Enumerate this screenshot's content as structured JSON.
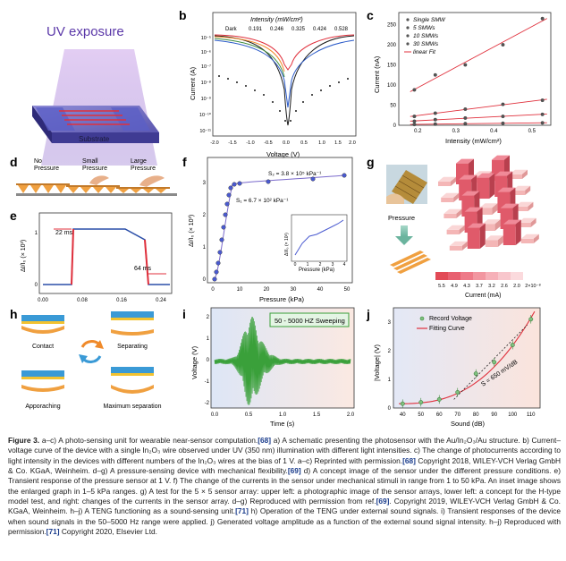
{
  "panels": {
    "a": {
      "letter": "a",
      "title": "UV exposure",
      "substrate": "Substrate"
    },
    "b": {
      "letter": "b",
      "legend_title": "Intensity (mW/cm²)",
      "legend_items": [
        "Dark",
        "0.191",
        "0.246",
        "0.325",
        "0.424",
        "0.528"
      ],
      "ylabel": "Current (A)",
      "xlabel": "Voltage (V)",
      "xticks": [
        "-2.0",
        "-1.5",
        "-1.0",
        "-0.5",
        "0.0",
        "0.5",
        "1.0",
        "1.5",
        "2.0"
      ],
      "yticks": [
        "10⁻⁵",
        "10⁻⁶",
        "10⁻⁷",
        "10⁻⁸",
        "10⁻⁹",
        "10⁻¹⁰",
        "10⁻¹¹"
      ]
    },
    "c": {
      "letter": "c",
      "ylabel": "Current (nA)",
      "xlabel": "Intensity (mW/cm²)",
      "xticks": [
        "0.2",
        "0.3",
        "0.4",
        "0.5"
      ],
      "yticks": [
        "0",
        "50",
        "100",
        "150",
        "200",
        "250"
      ],
      "legend": [
        "Single SMW",
        "5 SMWs",
        "10 SMWs",
        "30 SMWs",
        "linear Fit"
      ]
    },
    "d": {
      "letter": "d",
      "labels": [
        "No\nPressure",
        "Small\nPressure",
        "Large\nPressure"
      ]
    },
    "e": {
      "letter": "e",
      "ylabel": "ΔI/I₀ (× 10³)",
      "xticks": [
        "0.00",
        "0.08",
        "0.16",
        "0.24"
      ],
      "yticks": [
        "0",
        "1"
      ],
      "ann1": "22 ms",
      "ann2": "64 ms"
    },
    "f": {
      "letter": "f",
      "ylabel": "ΔI/I₀ (× 10³)",
      "xlabel": "Pressure (kPa)",
      "xticks": [
        "0",
        "10",
        "20",
        "30",
        "40",
        "50"
      ],
      "yticks": [
        "0",
        "1",
        "2",
        "3"
      ],
      "s1": "S₁ = 6.7 × 10² kPa⁻¹",
      "s2": "S₂ = 3.8 × 10⁵ kPa⁻¹",
      "inset_xlabel": "Pressure (kPa)",
      "inset_ylabel": "ΔI/I₀ (× 10³)",
      "inset_xticks": [
        "0",
        "1",
        "2",
        "3",
        "4"
      ]
    },
    "g": {
      "letter": "g",
      "pressure": "Pressure",
      "scale": [
        "5.5",
        "4.9",
        "4.3",
        "3.7",
        "3.2",
        "2.6",
        "2.0",
        "2×10⁻⁸"
      ],
      "scale_label": "Current (mA)"
    },
    "h": {
      "letter": "h",
      "labels": [
        "Contact",
        "Separating",
        "Apporaching",
        "Maximum separation"
      ]
    },
    "i": {
      "letter": "i",
      "box": "50 - 5000 HZ Sweeping",
      "ylabel": "Voltage (V)",
      "xlabel": "Time (s)",
      "xticks": [
        "0.0",
        "0.5",
        "1.0",
        "1.5",
        "2.0"
      ],
      "yticks": [
        "-2",
        "-1",
        "0",
        "1",
        "2"
      ]
    },
    "j": {
      "letter": "j",
      "ylabel": "|Voltage| (V)",
      "xlabel": "Sound (dB)",
      "xticks": [
        "40",
        "50",
        "60",
        "70",
        "80",
        "90",
        "100",
        "110"
      ],
      "yticks": [
        "0",
        "1",
        "2",
        "3"
      ],
      "legend": [
        "Record Voltage",
        "Fitting Curve"
      ],
      "slope": "S = 650 mV/dB"
    }
  },
  "chart_data": [
    {
      "type": "line",
      "panel": "c",
      "x": [
        0.191,
        0.246,
        0.325,
        0.424,
        0.528
      ],
      "series": [
        {
          "name": "Single SMW",
          "values": [
            2,
            3,
            4,
            5,
            6
          ]
        },
        {
          "name": "5 SMWs",
          "values": [
            10,
            14,
            18,
            22,
            27
          ]
        },
        {
          "name": "10 SMWs",
          "values": [
            22,
            30,
            40,
            52,
            62
          ]
        },
        {
          "name": "30 SMWs",
          "values": [
            88,
            125,
            150,
            200,
            265
          ]
        }
      ],
      "xlabel": "Intensity (mW/cm²)",
      "ylabel": "Current (nA)",
      "xlim": [
        0.15,
        0.55
      ],
      "ylim": [
        0,
        280
      ]
    },
    {
      "type": "scatter",
      "panel": "j",
      "x": [
        40,
        50,
        60,
        70,
        80,
        90,
        100,
        110
      ],
      "series": [
        {
          "name": "Record Voltage",
          "values": [
            0.15,
            0.2,
            0.3,
            0.55,
            1.2,
            1.6,
            2.2,
            3.1
          ]
        }
      ],
      "xlabel": "Sound (dB)",
      "ylabel": "|Voltage| (V)",
      "xlim": [
        35,
        115
      ],
      "ylim": [
        0,
        3.5
      ]
    }
  ],
  "caption": {
    "label": "Figure 3.",
    "text": "a–c) A photo-sensing unit for wearable near-sensor computation.",
    "ref1": "[68]",
    "text2": " a) A schematic presenting the photosensor with the Au/In₂O₃/Au structure. b) Current–voltage curve of the device with a single In₂O₃ wire observed under UV (350 nm) illumination with different light intensities. c) The change of photocurrents according to light intensity in the devices with different numbers of the In₂O₃ wires at the bias of 1 V. a–c) Reprinted with permission.",
    "ref2": "[68]",
    "text3": " Copyright 2018, WILEY-VCH Verlag GmbH & Co. KGaA, Weinheim. d–g) A pressure-sensing device with mechanical flexibility.",
    "ref3": "[69]",
    "text4": " d) A concept image of the sensor under the different pressure conditions. e) Transient response of the pressure sensor at 1 V. f) The change of the currents in the sensor under mechanical stimuli in range from 1 to 50 kPa. An inset image shows the enlarged graph in 1–5 kPa ranges. g) A test for the 5 × 5 sensor array: upper left: a photographic image of the sensor arrays, lower left: a concept for the H-type model test, and right: changes of the currents in the sensor array. d–g) Reproduced with permission from ref.",
    "ref4": "[69]",
    "text5": ". Copyright 2019, WILEY-VCH Verlag GmbH & Co. KGaA, Weinheim. h–j) A TENG functioning as a sound-sensing unit.",
    "ref5": "[71]",
    "text6": " h) Operation of the TENG under external sound signals. i) Transient responses of the device when sound signals in the 50–5000 Hz range were applied. j) Generated voltage amplitude as a function of the external sound signal intensity. h–j) Reproduced with permission.",
    "ref6": "[71]",
    "text7": " Copyright 2020, Elsevier Ltd."
  }
}
